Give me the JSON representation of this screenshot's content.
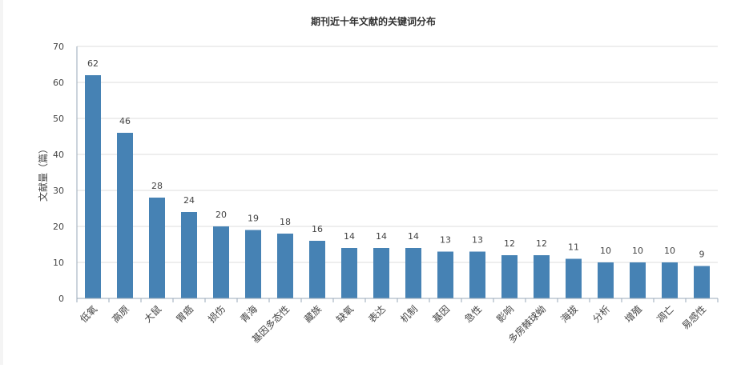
{
  "chart_data": {
    "type": "bar",
    "title": "期刊近十年文献的关键词分布",
    "xlabel": "",
    "ylabel": "文献量（篇）",
    "ylim": [
      0,
      70
    ],
    "yticks": [
      0,
      10,
      20,
      30,
      40,
      50,
      60,
      70
    ],
    "grid": true,
    "legend": "none",
    "bar_color": "#4682b4",
    "categories": [
      "低氧",
      "高原",
      "大鼠",
      "胃癌",
      "损伤",
      "青海",
      "基因多态性",
      "藏族",
      "缺氧",
      "表达",
      "机制",
      "基因",
      "急性",
      "影响",
      "多房棘球蚴",
      "海拔",
      "分析",
      "增殖",
      "凋亡",
      "易感性"
    ],
    "values": [
      62,
      46,
      28,
      24,
      20,
      19,
      18,
      16,
      14,
      14,
      14,
      13,
      13,
      12,
      12,
      11,
      10,
      10,
      10,
      9
    ]
  }
}
